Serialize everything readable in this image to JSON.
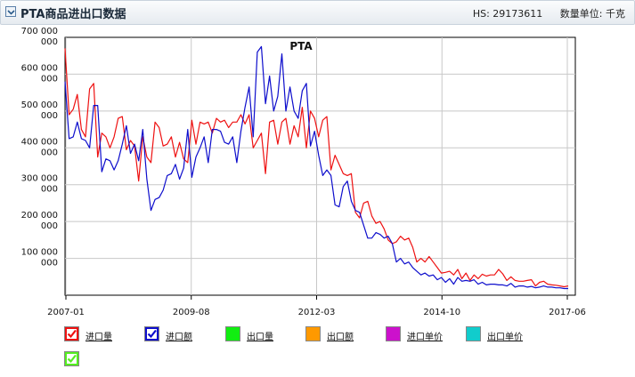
{
  "header": {
    "title": "PTA商品进出口数据",
    "hs": "HS: 29173611",
    "unit": "数量单位: 千克"
  },
  "legend": [
    {
      "label": "进口量",
      "color": "#ee1111",
      "checked": true
    },
    {
      "label": "进口额",
      "color": "#0d0dcc",
      "checked": true
    },
    {
      "label": "出口量",
      "color": "#11ee11",
      "checked": false
    },
    {
      "label": "出口额",
      "color": "#ff9900",
      "checked": false
    },
    {
      "label": "进口单价",
      "color": "#cc11cc",
      "checked": false
    },
    {
      "label": "出口单价",
      "color": "#11cccc",
      "checked": false
    },
    {
      "label": "",
      "color": "#55ee22",
      "checked": true
    }
  ],
  "chart_data": {
    "type": "line",
    "title": "PTA",
    "xlabel": "",
    "ylabel": "",
    "x_ticks": [
      "2007-01",
      "2009-08",
      "2012-03",
      "2014-10",
      "2017-06"
    ],
    "y_ticks": [
      {
        "value": 100000,
        "label": "100 000\n000"
      },
      {
        "value": 200000,
        "label": "200 000\n000"
      },
      {
        "value": 300000,
        "label": "300 000\n000"
      },
      {
        "value": 400000,
        "label": "400 000\n000"
      },
      {
        "value": 500000,
        "label": "500 000\n000"
      },
      {
        "value": 600000,
        "label": "600 000\n000"
      },
      {
        "value": 700000,
        "label": "700 000\n000"
      }
    ],
    "y_unit_note": "values in thousands of shown tick units (tick labels read e.g. 700 000 000)",
    "ylim": [
      0,
      700000
    ],
    "xlim": [
      "2007-01",
      "2017-06"
    ],
    "grid": true,
    "series": [
      {
        "name": "进口量",
        "color": "#ee1111",
        "values": [
          [
            0,
            670000
          ],
          [
            1,
            490000
          ],
          [
            2,
            505000
          ],
          [
            3,
            545000
          ],
          [
            4,
            450000
          ],
          [
            5,
            430000
          ],
          [
            6,
            560000
          ],
          [
            7,
            575000
          ],
          [
            8,
            375000
          ],
          [
            9,
            440000
          ],
          [
            10,
            430000
          ],
          [
            11,
            400000
          ],
          [
            12,
            430000
          ],
          [
            13,
            480000
          ],
          [
            14,
            485000
          ],
          [
            15,
            395000
          ],
          [
            16,
            420000
          ],
          [
            17,
            405000
          ],
          [
            18,
            310000
          ],
          [
            19,
            430000
          ],
          [
            20,
            375000
          ],
          [
            21,
            360000
          ],
          [
            22,
            470000
          ],
          [
            23,
            455000
          ],
          [
            24,
            405000
          ],
          [
            25,
            410000
          ],
          [
            26,
            430000
          ],
          [
            27,
            375000
          ],
          [
            28,
            415000
          ],
          [
            29,
            370000
          ],
          [
            30,
            360000
          ],
          [
            31,
            475000
          ],
          [
            32,
            410000
          ],
          [
            33,
            470000
          ],
          [
            34,
            465000
          ],
          [
            35,
            470000
          ],
          [
            36,
            440000
          ],
          [
            37,
            480000
          ],
          [
            38,
            470000
          ],
          [
            39,
            475000
          ],
          [
            40,
            455000
          ],
          [
            41,
            470000
          ],
          [
            42,
            470000
          ],
          [
            43,
            490000
          ],
          [
            44,
            465000
          ],
          [
            45,
            490000
          ],
          [
            46,
            400000
          ],
          [
            47,
            420000
          ],
          [
            48,
            440000
          ],
          [
            49,
            330000
          ],
          [
            50,
            470000
          ],
          [
            51,
            475000
          ],
          [
            52,
            410000
          ],
          [
            53,
            470000
          ],
          [
            54,
            480000
          ],
          [
            55,
            410000
          ],
          [
            56,
            460000
          ],
          [
            57,
            430000
          ],
          [
            58,
            510000
          ],
          [
            59,
            400000
          ],
          [
            60,
            500000
          ],
          [
            61,
            480000
          ],
          [
            62,
            430000
          ],
          [
            63,
            475000
          ],
          [
            64,
            485000
          ],
          [
            65,
            340000
          ],
          [
            66,
            380000
          ],
          [
            67,
            355000
          ],
          [
            68,
            330000
          ],
          [
            69,
            325000
          ],
          [
            70,
            330000
          ],
          [
            71,
            225000
          ],
          [
            72,
            210000
          ],
          [
            73,
            250000
          ],
          [
            74,
            255000
          ],
          [
            75,
            215000
          ],
          [
            76,
            195000
          ],
          [
            77,
            200000
          ],
          [
            78,
            180000
          ],
          [
            79,
            150000
          ],
          [
            80,
            140000
          ],
          [
            81,
            145000
          ],
          [
            82,
            160000
          ],
          [
            83,
            150000
          ],
          [
            84,
            155000
          ],
          [
            85,
            130000
          ],
          [
            86,
            90000
          ],
          [
            87,
            100000
          ],
          [
            88,
            90000
          ],
          [
            89,
            105000
          ],
          [
            90,
            90000
          ],
          [
            91,
            75000
          ],
          [
            92,
            60000
          ],
          [
            93,
            62000
          ],
          [
            94,
            65000
          ],
          [
            95,
            55000
          ],
          [
            96,
            70000
          ],
          [
            97,
            45000
          ],
          [
            98,
            60000
          ],
          [
            99,
            40000
          ],
          [
            100,
            55000
          ],
          [
            101,
            45000
          ],
          [
            102,
            57000
          ],
          [
            103,
            52000
          ],
          [
            104,
            55000
          ],
          [
            105,
            55000
          ],
          [
            106,
            70000
          ],
          [
            107,
            58000
          ],
          [
            108,
            40000
          ],
          [
            109,
            50000
          ],
          [
            110,
            40000
          ],
          [
            111,
            38000
          ],
          [
            112,
            38000
          ],
          [
            113,
            40000
          ],
          [
            114,
            42000
          ],
          [
            115,
            25000
          ],
          [
            116,
            35000
          ],
          [
            117,
            38000
          ],
          [
            118,
            30000
          ],
          [
            119,
            28000
          ],
          [
            120,
            27000
          ],
          [
            121,
            25000
          ],
          [
            122,
            23000
          ],
          [
            123,
            25000
          ]
        ]
      },
      {
        "name": "进口额",
        "color": "#0d0dcc",
        "values": [
          [
            0,
            580000
          ],
          [
            1,
            425000
          ],
          [
            2,
            430000
          ],
          [
            3,
            470000
          ],
          [
            4,
            425000
          ],
          [
            5,
            420000
          ],
          [
            6,
            400000
          ],
          [
            7,
            515000
          ],
          [
            8,
            515000
          ],
          [
            9,
            335000
          ],
          [
            10,
            370000
          ],
          [
            11,
            365000
          ],
          [
            12,
            340000
          ],
          [
            13,
            365000
          ],
          [
            14,
            410000
          ],
          [
            15,
            460000
          ],
          [
            16,
            385000
          ],
          [
            17,
            410000
          ],
          [
            18,
            365000
          ],
          [
            19,
            450000
          ],
          [
            20,
            315000
          ],
          [
            21,
            230000
          ],
          [
            22,
            260000
          ],
          [
            23,
            265000
          ],
          [
            24,
            285000
          ],
          [
            25,
            325000
          ],
          [
            26,
            330000
          ],
          [
            27,
            355000
          ],
          [
            28,
            315000
          ],
          [
            29,
            345000
          ],
          [
            30,
            450000
          ],
          [
            31,
            320000
          ],
          [
            32,
            375000
          ],
          [
            33,
            400000
          ],
          [
            34,
            430000
          ],
          [
            35,
            360000
          ],
          [
            36,
            450000
          ],
          [
            37,
            450000
          ],
          [
            38,
            445000
          ],
          [
            39,
            415000
          ],
          [
            40,
            410000
          ],
          [
            41,
            430000
          ],
          [
            42,
            360000
          ],
          [
            43,
            445000
          ],
          [
            44,
            510000
          ],
          [
            45,
            565000
          ],
          [
            46,
            430000
          ],
          [
            47,
            660000
          ],
          [
            48,
            675000
          ],
          [
            49,
            520000
          ],
          [
            50,
            595000
          ],
          [
            51,
            500000
          ],
          [
            52,
            540000
          ],
          [
            53,
            655000
          ],
          [
            54,
            500000
          ],
          [
            55,
            565000
          ],
          [
            56,
            500000
          ],
          [
            57,
            480000
          ],
          [
            58,
            555000
          ],
          [
            59,
            575000
          ],
          [
            60,
            405000
          ],
          [
            61,
            445000
          ],
          [
            62,
            380000
          ],
          [
            63,
            325000
          ],
          [
            64,
            340000
          ],
          [
            65,
            325000
          ],
          [
            66,
            245000
          ],
          [
            67,
            240000
          ],
          [
            68,
            295000
          ],
          [
            69,
            310000
          ],
          [
            70,
            255000
          ],
          [
            71,
            230000
          ],
          [
            72,
            225000
          ],
          [
            73,
            190000
          ],
          [
            74,
            155000
          ],
          [
            75,
            155000
          ],
          [
            76,
            170000
          ],
          [
            77,
            165000
          ],
          [
            78,
            155000
          ],
          [
            79,
            160000
          ],
          [
            80,
            140000
          ],
          [
            81,
            90000
          ],
          [
            82,
            100000
          ],
          [
            83,
            85000
          ],
          [
            84,
            90000
          ],
          [
            85,
            75000
          ],
          [
            86,
            65000
          ],
          [
            87,
            55000
          ],
          [
            88,
            60000
          ],
          [
            89,
            52000
          ],
          [
            90,
            55000
          ],
          [
            91,
            42000
          ],
          [
            92,
            48000
          ],
          [
            93,
            35000
          ],
          [
            94,
            45000
          ],
          [
            95,
            30000
          ],
          [
            96,
            48000
          ],
          [
            97,
            38000
          ],
          [
            98,
            40000
          ],
          [
            99,
            38000
          ],
          [
            100,
            42000
          ],
          [
            101,
            30000
          ],
          [
            102,
            35000
          ],
          [
            103,
            28000
          ],
          [
            104,
            30000
          ],
          [
            105,
            30000
          ],
          [
            106,
            28000
          ],
          [
            107,
            28000
          ],
          [
            108,
            25000
          ],
          [
            109,
            32000
          ],
          [
            110,
            22000
          ],
          [
            111,
            25000
          ],
          [
            112,
            25000
          ],
          [
            113,
            22000
          ],
          [
            114,
            24000
          ],
          [
            115,
            20000
          ],
          [
            116,
            22000
          ],
          [
            117,
            25000
          ],
          [
            118,
            22000
          ],
          [
            119,
            22000
          ],
          [
            120,
            20000
          ],
          [
            121,
            20000
          ],
          [
            122,
            18000
          ],
          [
            123,
            18000
          ]
        ]
      }
    ],
    "x_index_range": [
      0,
      123
    ]
  }
}
